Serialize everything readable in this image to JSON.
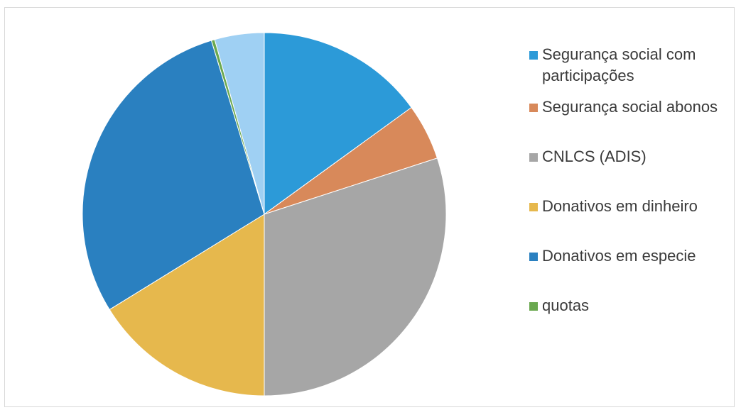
{
  "chart_data": {
    "type": "pie",
    "title": "",
    "legend_position": "right",
    "series": [
      {
        "name": "Segurança social com participações",
        "value": 15.0,
        "color": "#2c9ad8"
      },
      {
        "name": "Segurança social abonos",
        "value": 5.0,
        "color": "#d8895a"
      },
      {
        "name": "CNLCS (ADIS)",
        "value": 30.0,
        "color": "#a6a6a6"
      },
      {
        "name": "Donativos em dinheiro",
        "value": 16.2,
        "color": "#e6b84d"
      },
      {
        "name": "Donativos em especie",
        "value": 29.1,
        "color": "#2a80c0"
      },
      {
        "name": "quotas",
        "value": 0.3,
        "color": "#6aa84f"
      },
      {
        "name": "",
        "value": 4.4,
        "color": "#9fd0f3"
      }
    ]
  }
}
